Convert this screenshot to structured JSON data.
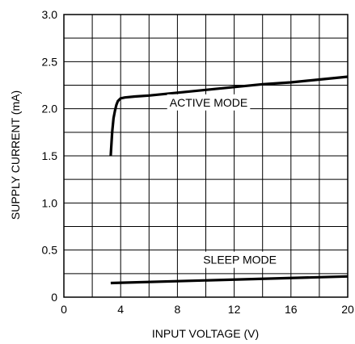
{
  "chart_data": {
    "type": "line",
    "title": "",
    "xlabel": "INPUT VOLTAGE (V)",
    "ylabel": "SUPPLY CURRENT (mA)",
    "xlim": [
      0,
      20
    ],
    "ylim": [
      0,
      3.0
    ],
    "grid": true,
    "x_ticks": [
      0,
      2,
      4,
      6,
      8,
      10,
      12,
      14,
      16,
      18,
      20
    ],
    "x_tick_labels": [
      "0",
      "",
      "4",
      "",
      "8",
      "",
      "12",
      "",
      "16",
      "",
      "20"
    ],
    "y_ticks": [
      0,
      0.25,
      0.5,
      0.75,
      1.0,
      1.25,
      1.5,
      1.75,
      2.0,
      2.25,
      2.5,
      2.75,
      3.0
    ],
    "y_tick_labels": [
      "0",
      "",
      "0.5",
      "",
      "1.0",
      "",
      "1.5",
      "",
      "2.0",
      "",
      "2.5",
      "",
      "3.0"
    ],
    "series": [
      {
        "name": "ACTIVE MODE",
        "color": "#000000",
        "x": [
          3.3,
          3.4,
          3.5,
          3.6,
          3.7,
          3.8,
          4.0,
          4.3,
          5.0,
          6.0,
          8.0,
          10.0,
          12.0,
          14.0,
          16.0,
          18.0,
          20.0
        ],
        "y": [
          1.5,
          1.75,
          1.9,
          1.98,
          2.04,
          2.08,
          2.11,
          2.12,
          2.13,
          2.14,
          2.17,
          2.2,
          2.23,
          2.26,
          2.28,
          2.31,
          2.34
        ]
      },
      {
        "name": "SLEEP MODE",
        "color": "#000000",
        "x": [
          3.3,
          20.0
        ],
        "y": [
          0.15,
          0.22
        ]
      }
    ],
    "annotations": [
      {
        "text": "ACTIVE MODE",
        "x": 10.2,
        "y": 2.05
      },
      {
        "text": "SLEEP MODE",
        "x": 12.4,
        "y": 0.38
      }
    ]
  }
}
